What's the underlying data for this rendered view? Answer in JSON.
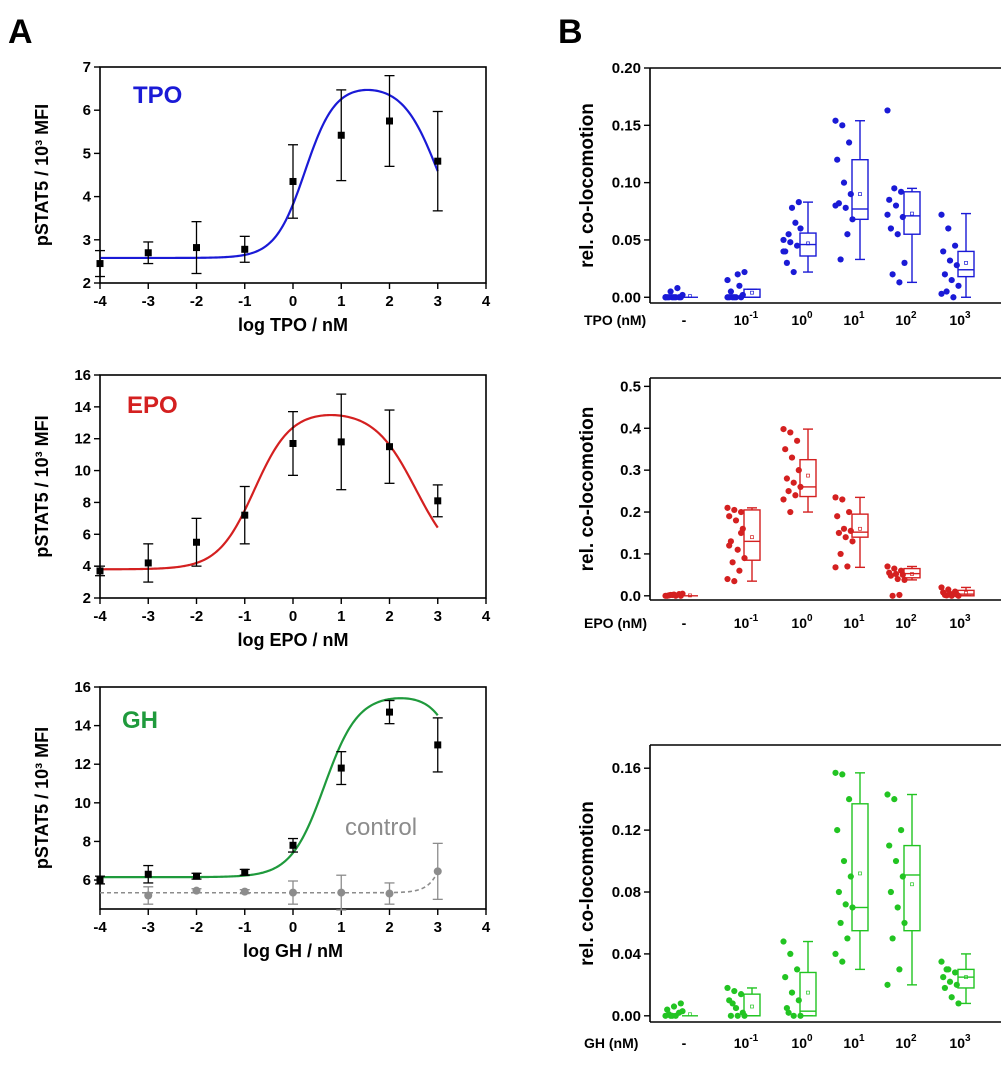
{
  "panels": {
    "a": "A",
    "b": "B"
  },
  "chart_data": [
    {
      "type": "line",
      "panel": "A",
      "title": "TPO",
      "xlabel": "log TPO / nM",
      "ylabel": "pSTAT5 / 10³ MFI",
      "xlim": [
        -4,
        4
      ],
      "ylim": [
        2,
        7
      ],
      "xticks": [
        "-4",
        "-3",
        "-2",
        "-1",
        "0",
        "1",
        "2",
        "3",
        "4"
      ],
      "yticks": [
        "2",
        "3",
        "4",
        "5",
        "6",
        "7"
      ],
      "color": "#1a1ad6",
      "series": [
        {
          "x": [
            -4,
            -3,
            -2,
            -1,
            0,
            1,
            2,
            3
          ],
          "y": [
            2.45,
            2.7,
            2.82,
            2.78,
            4.35,
            5.42,
            5.75,
            4.82
          ],
          "err": [
            0.3,
            0.25,
            0.6,
            0.3,
            0.85,
            1.05,
            1.05,
            1.15
          ],
          "fit": {
            "base": 2.58,
            "top": 6.6,
            "ec50": 0.25,
            "slope": 1.4,
            "ic50": 3.0,
            "islope": 1.2
          }
        }
      ]
    },
    {
      "type": "line",
      "panel": "A",
      "title": "EPO",
      "xlabel": "log EPO / nM",
      "ylabel": "pSTAT5 / 10³ MFI",
      "xlim": [
        -4,
        4
      ],
      "ylim": [
        2,
        16
      ],
      "xticks": [
        "-4",
        "-3",
        "-2",
        "-1",
        "0",
        "1",
        "2",
        "3",
        "4"
      ],
      "yticks": [
        "2",
        "4",
        "6",
        "8",
        "10",
        "12",
        "14",
        "16"
      ],
      "color": "#d42020",
      "series": [
        {
          "x": [
            -4,
            -3,
            -2,
            -1,
            0,
            1,
            2,
            3
          ],
          "y": [
            3.7,
            4.2,
            5.5,
            7.2,
            11.7,
            11.8,
            11.5,
            8.1
          ],
          "err": [
            0.3,
            1.2,
            1.5,
            1.8,
            2.0,
            3.0,
            2.3,
            1.0
          ],
          "fit": {
            "base": 3.8,
            "top": 13.8,
            "ec50": -0.8,
            "slope": 1.15,
            "ic50": 2.55,
            "islope": 1.0
          }
        }
      ]
    },
    {
      "type": "line",
      "panel": "A",
      "title": "GH",
      "xlabel": "log GH / nM",
      "ylabel": "pSTAT5 / 10³ MFI",
      "xlim": [
        -4,
        4
      ],
      "ylim": [
        4.5,
        16
      ],
      "xticks": [
        "-4",
        "-3",
        "-2",
        "-1",
        "0",
        "1",
        "2",
        "3",
        "4"
      ],
      "yticks": [
        "6",
        "8",
        "10",
        "12",
        "14",
        "16"
      ],
      "color": "#1f9a3c",
      "annotation": "control",
      "series": [
        {
          "x": [
            -4,
            -3,
            -2,
            -1,
            0,
            1,
            2,
            3
          ],
          "y": [
            6.0,
            6.3,
            6.2,
            6.4,
            7.8,
            11.8,
            14.7,
            13.0
          ],
          "err": [
            0.2,
            0.45,
            0.15,
            0.15,
            0.35,
            0.85,
            0.6,
            1.4
          ],
          "fit": {
            "base": 6.15,
            "top": 15.6,
            "ec50": 0.65,
            "slope": 1.25,
            "ic50": 3.6,
            "islope": 1.5
          }
        },
        {
          "x": [
            -3,
            -2,
            -1,
            0,
            1,
            2,
            3
          ],
          "y": [
            5.2,
            5.45,
            5.4,
            5.35,
            5.35,
            5.3,
            6.45
          ],
          "err": [
            0.45,
            0.1,
            0.1,
            0.6,
            0.9,
            0.55,
            1.45
          ],
          "color": "#8c8c8c",
          "dashed": true
        }
      ]
    },
    {
      "type": "box",
      "panel": "B",
      "ylabel": "rel. co-locomotion",
      "ylim": [
        -0.005,
        0.2
      ],
      "yticks": [
        "0.00",
        "0.05",
        "0.10",
        "0.15",
        "0.20"
      ],
      "axis_label": "TPO (nM)",
      "color": "#1a1ad6",
      "categories": [
        {
          "label": "-",
          "exp": "",
          "q1": 0,
          "median": 0,
          "q3": 0,
          "wlo": 0,
          "whi": 0,
          "mean": 0.001,
          "points": [
            0,
            0,
            0,
            0,
            0,
            0,
            0,
            0,
            0.002,
            0.005,
            0.008,
            0
          ]
        },
        {
          "label": "10",
          "exp": "-1",
          "q1": 0,
          "median": 0,
          "q3": 0.007,
          "wlo": 0,
          "whi": 0.007,
          "mean": 0.004,
          "points": [
            0,
            0,
            0,
            0,
            0,
            0.002,
            0.005,
            0.02,
            0.022,
            0,
            0.01,
            0.015
          ]
        },
        {
          "label": "10",
          "exp": "0",
          "q1": 0.036,
          "median": 0.046,
          "q3": 0.056,
          "wlo": 0.022,
          "whi": 0.083,
          "mean": 0.047,
          "points": [
            0.05,
            0.048,
            0.045,
            0.04,
            0.078,
            0.083,
            0.03,
            0.022,
            0.06,
            0.055,
            0.065,
            0.04
          ]
        },
        {
          "label": "10",
          "exp": "1",
          "q1": 0.068,
          "median": 0.077,
          "q3": 0.12,
          "wlo": 0.033,
          "whi": 0.154,
          "mean": 0.09,
          "points": [
            0.154,
            0.15,
            0.135,
            0.12,
            0.1,
            0.09,
            0.082,
            0.078,
            0.068,
            0.033,
            0.055,
            0.08
          ]
        },
        {
          "label": "10",
          "exp": "2",
          "q1": 0.055,
          "median": 0.071,
          "q3": 0.092,
          "wlo": 0.013,
          "whi": 0.095,
          "mean": 0.073,
          "points": [
            0.163,
            0.095,
            0.092,
            0.085,
            0.08,
            0.07,
            0.06,
            0.055,
            0.03,
            0.02,
            0.013,
            0.072
          ]
        },
        {
          "label": "10",
          "exp": "3",
          "q1": 0.018,
          "median": 0.024,
          "q3": 0.04,
          "wlo": 0,
          "whi": 0.073,
          "mean": 0.03,
          "points": [
            0.072,
            0.06,
            0.045,
            0.04,
            0.032,
            0.028,
            0.02,
            0.015,
            0.01,
            0.005,
            0,
            0.003
          ]
        }
      ]
    },
    {
      "type": "box",
      "panel": "B",
      "ylabel": "rel. co-locomotion",
      "ylim": [
        -0.01,
        0.52
      ],
      "yticks": [
        "0.0",
        "0.1",
        "0.2",
        "0.3",
        "0.4",
        "0.5"
      ],
      "axis_label": "EPO (nM)",
      "color": "#d42020",
      "categories": [
        {
          "label": "-",
          "exp": "",
          "q1": 0,
          "median": 0,
          "q3": 0,
          "wlo": 0,
          "whi": 0,
          "mean": 0.001,
          "points": [
            0,
            0.002,
            0.004,
            0,
            0.003,
            0,
            0.001,
            0,
            0.005,
            0.002
          ]
        },
        {
          "label": "10",
          "exp": "-1",
          "q1": 0.085,
          "median": 0.13,
          "q3": 0.205,
          "wlo": 0.035,
          "whi": 0.21,
          "mean": 0.14,
          "points": [
            0.21,
            0.205,
            0.2,
            0.19,
            0.18,
            0.16,
            0.13,
            0.11,
            0.09,
            0.08,
            0.06,
            0.04,
            0.035,
            0.15,
            0.12
          ]
        },
        {
          "label": "10",
          "exp": "0",
          "q1": 0.237,
          "median": 0.26,
          "q3": 0.325,
          "wlo": 0.2,
          "whi": 0.398,
          "mean": 0.287,
          "points": [
            0.398,
            0.39,
            0.37,
            0.35,
            0.33,
            0.3,
            0.28,
            0.27,
            0.26,
            0.25,
            0.24,
            0.23,
            0.2
          ]
        },
        {
          "label": "10",
          "exp": "1",
          "q1": 0.14,
          "median": 0.152,
          "q3": 0.195,
          "wlo": 0.068,
          "whi": 0.235,
          "mean": 0.16,
          "points": [
            0.235,
            0.23,
            0.2,
            0.19,
            0.16,
            0.155,
            0.15,
            0.14,
            0.13,
            0.1,
            0.07,
            0.068
          ]
        },
        {
          "label": "10",
          "exp": "2",
          "q1": 0.043,
          "median": 0.053,
          "q3": 0.065,
          "wlo": 0.038,
          "whi": 0.07,
          "mean": 0.052,
          "points": [
            0.07,
            0.065,
            0.06,
            0.055,
            0.052,
            0.05,
            0.048,
            0.04,
            0.038,
            0,
            0.002
          ]
        },
        {
          "label": "10",
          "exp": "3",
          "q1": 0,
          "median": 0.004,
          "q3": 0.013,
          "wlo": 0,
          "whi": 0.02,
          "mean": 0.007,
          "points": [
            0.02,
            0.015,
            0.01,
            0.008,
            0.005,
            0.003,
            0.002,
            0,
            0,
            0.001
          ]
        }
      ]
    },
    {
      "type": "box",
      "panel": "B",
      "ylabel": "rel. co-locomotion",
      "ylim": [
        -0.004,
        0.175
      ],
      "yticks": [
        "0.00",
        "0.04",
        "0.08",
        "0.12",
        "0.16"
      ],
      "axis_label": "GH (nM)",
      "color": "#22c422",
      "categories": [
        {
          "label": "-",
          "exp": "",
          "q1": 0,
          "median": 0,
          "q3": 0,
          "wlo": 0,
          "whi": 0,
          "mean": 0.001,
          "points": [
            0,
            0,
            0.002,
            0.004,
            0.006,
            0.008,
            0.001,
            0,
            0.003,
            0
          ]
        },
        {
          "label": "10",
          "exp": "-1",
          "q1": 0,
          "median": 0,
          "q3": 0.014,
          "wlo": 0,
          "whi": 0.018,
          "mean": 0.006,
          "points": [
            0.018,
            0.016,
            0.014,
            0.01,
            0.005,
            0.002,
            0,
            0,
            0,
            0.008
          ]
        },
        {
          "label": "10",
          "exp": "0",
          "q1": 0,
          "median": 0.003,
          "q3": 0.028,
          "wlo": 0,
          "whi": 0.048,
          "mean": 0.015,
          "points": [
            0.048,
            0.04,
            0.03,
            0.025,
            0.015,
            0.01,
            0.005,
            0,
            0,
            0.002
          ]
        },
        {
          "label": "10",
          "exp": "1",
          "q1": 0.055,
          "median": 0.07,
          "q3": 0.137,
          "wlo": 0.03,
          "whi": 0.157,
          "mean": 0.092,
          "points": [
            0.157,
            0.156,
            0.14,
            0.12,
            0.1,
            0.09,
            0.08,
            0.072,
            0.07,
            0.06,
            0.05,
            0.04,
            0.035
          ]
        },
        {
          "label": "10",
          "exp": "2",
          "q1": 0.055,
          "median": 0.091,
          "q3": 0.11,
          "wlo": 0.02,
          "whi": 0.143,
          "mean": 0.085,
          "points": [
            0.143,
            0.14,
            0.12,
            0.11,
            0.1,
            0.09,
            0.08,
            0.07,
            0.06,
            0.05,
            0.03,
            0.02
          ]
        },
        {
          "label": "10",
          "exp": "3",
          "q1": 0.018,
          "median": 0.025,
          "q3": 0.03,
          "wlo": 0.008,
          "whi": 0.04,
          "mean": 0.025,
          "points": [
            0.035,
            0.03,
            0.028,
            0.025,
            0.022,
            0.02,
            0.018,
            0.012,
            0.008,
            0.03
          ]
        }
      ]
    }
  ]
}
